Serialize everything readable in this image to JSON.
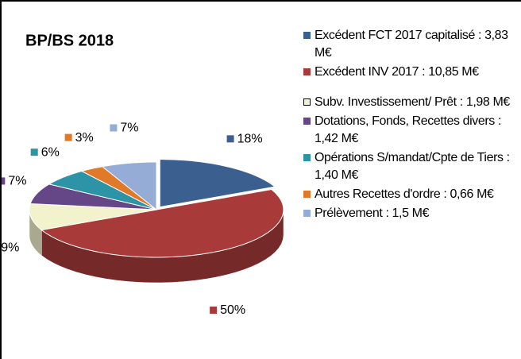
{
  "chart_data": {
    "type": "pie3d",
    "title": "BP/BS 2018",
    "categories": [
      "Excédent FCT 2017 capitalisé : 3,83 M€",
      "Excédent INV 2017 : 10,85 M€",
      "Subv. Investissement/ Prêt : 1,98 M€",
      "Dotations, Fonds, Recettes divers : 1,42 M€",
      "Opérations S/mandat/Cpte de Tiers : 1,40 M€",
      "Autres Recettes d'ordre : 0,66 M€",
      "Prélèvement : 1,5 M€"
    ],
    "values": [
      18,
      50,
      9,
      7,
      6,
      3,
      7
    ],
    "value_labels": [
      "18%",
      "50%",
      "9%",
      "7%",
      "6%",
      "3%",
      "7%"
    ],
    "colors": [
      "#3b5f8e",
      "#a83b3a",
      "#f2f2cc",
      "#654687",
      "#2d93a6",
      "#e0792a",
      "#95acd6"
    ],
    "legend": "right"
  }
}
